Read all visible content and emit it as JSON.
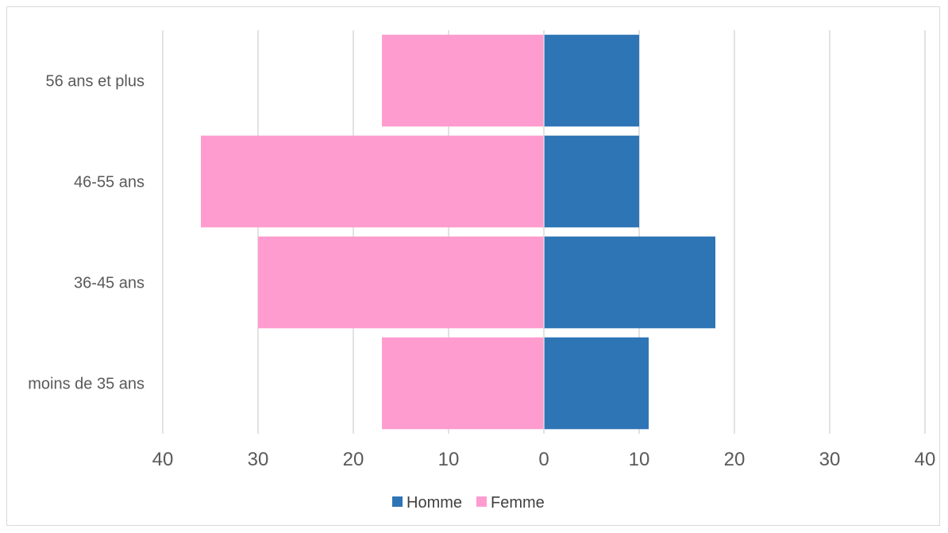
{
  "chart_data": {
    "type": "bar",
    "orientation": "horizontal",
    "layout": "population-pyramid",
    "title": "",
    "categories": [
      "56 ans et plus",
      "46-55 ans",
      "36-45 ans",
      "moins de 35 ans"
    ],
    "series": [
      {
        "name": "Homme",
        "values": [
          10,
          10,
          18,
          11
        ],
        "color": "#2e75b6",
        "side": "right"
      },
      {
        "name": "Femme",
        "values": [
          17,
          36,
          30,
          17
        ],
        "color": "#ff9ccf",
        "side": "left"
      }
    ],
    "x_ticks": [
      -40,
      -30,
      -20,
      -10,
      0,
      10,
      20,
      30,
      40
    ],
    "x_tick_labels": [
      "40",
      "30",
      "20",
      "10",
      "0",
      "10",
      "20",
      "30",
      "40"
    ],
    "xlim": [
      -40,
      40
    ],
    "grid": true,
    "legend_position": "bottom"
  }
}
